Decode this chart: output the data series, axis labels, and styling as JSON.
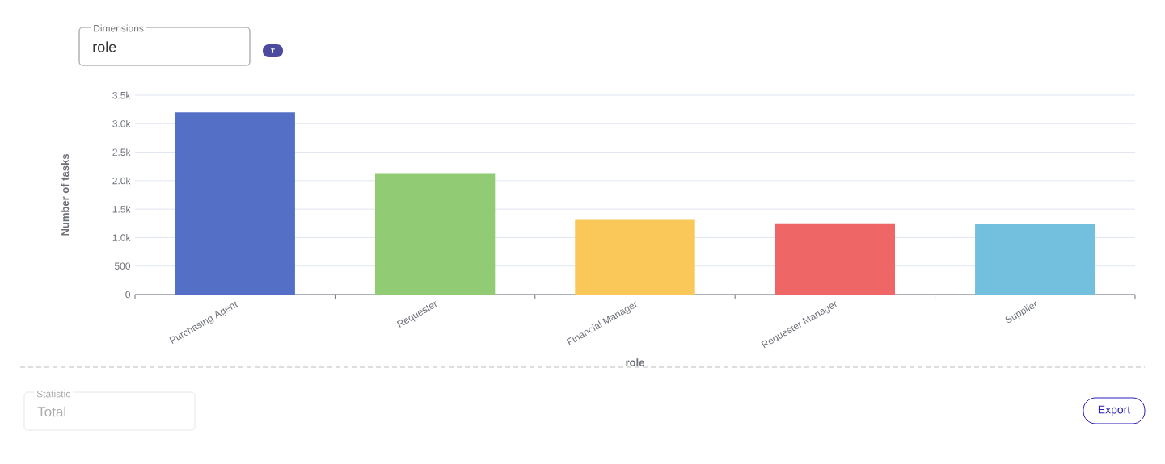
{
  "chart_data": {
    "type": "bar",
    "categories": [
      "Purchasing Agent",
      "Requester",
      "Financial Manager",
      "Requester Manager",
      "Supplier"
    ],
    "values": [
      3200,
      2120,
      1310,
      1250,
      1240
    ],
    "colors": [
      "#5470c6",
      "#91cc75",
      "#fac858",
      "#ee6666",
      "#73c0de"
    ],
    "xlabel": "role",
    "ylabel": "Number of tasks",
    "ylim": [
      0,
      3500
    ],
    "yticks": [
      0,
      500,
      {
        "value": 1000,
        "label": "1.0k"
      },
      {
        "value": 1500,
        "label": "1.5k"
      },
      {
        "value": 2000,
        "label": "2.0k"
      },
      {
        "value": 2500,
        "label": "2.5k"
      },
      {
        "value": 3000,
        "label": "3.0k"
      },
      {
        "value": 3500,
        "label": "3.5k"
      }
    ],
    "grid": "y",
    "annotations": [
      "Dimensions",
      "role",
      "T",
      "Statistic",
      "Total",
      "Export"
    ]
  }
}
